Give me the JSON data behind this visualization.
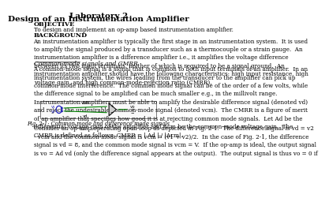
{
  "title_line1": "Laboratory 2",
  "title_line2": "Design of an Instrumentation Amplifier",
  "section1_header": "OBJECTIVE",
  "section1_body": "To design and implement an op-amp based instrumentation amplifier.",
  "section2_header": "BACKGROUND",
  "section2_body1": "An instrumentation amplifier is typically the first stage in an instrumentation system.  It is used\nto amplify the signal produced by a transducer such as a thermocouple or a strain gauge.  An\ninstrumentation amplifier is a difference amplifier i.e., it amplifies the voltage difference\nbetween its two input terminals, neither of which is required to be a signal ground.  An\ninstrumentation amplifier should have the following characteristics: high input resistance, high\nvoltage gain, and high common-mode-rejection ratio (CMRR).",
  "section2_sub": "Common-mode signals and CMRR",
  "section2_body2": "A common-mode signal is a signal that is common to both input terminals of an amplifier.  In an\ninstrumentation system, the wires leading from the transducer to the amplifier can pick up\ncommon mode interference.  The common mode signal can be of the order of a few volts, while\nthe difference signal to be amplified can be much smaller e.g., in the millivolt range.\nInstrumentation amplifiers must be able to amplify the desirable difference signal (denoted vd)\nand reject the undesirable common-mode signal (denoted vcm).  The CMRR is a figure of merit\nof an amplifier that specifies how good it is at rejecting common mode signals.  Let Ad be the\ndifferential voltage gain of the amplifier and Acm be the common-mode voltage gain.  The\nCMRR is defined as follows: CMRR = | Ad | / |Acm|.",
  "fig_caption": "Fig. 2-1: Common mode and difference mode signals",
  "section3_body": "Consider an op-amp operating open-loop as depicted in Fig. 2-1.  The difference signal is vd = v2\n- vcm and the common-mode signal is vcm = (v1 + v2)/2.  In the case of Fig. 2-1, the difference\nsignal is vd = 8, and the common mode signal is vcm = V.  If the op-amp is ideal, the output signal\nis vo = Ad vd (only the difference signal appears at the output).  The output signal is thus vo = 0 if",
  "bg_color": "#ffffff",
  "text_color": "#000000",
  "title_fontsize": 7.5,
  "body_fontsize": 5.2,
  "header_fontsize": 5.8,
  "sub_fontsize": 5.5
}
